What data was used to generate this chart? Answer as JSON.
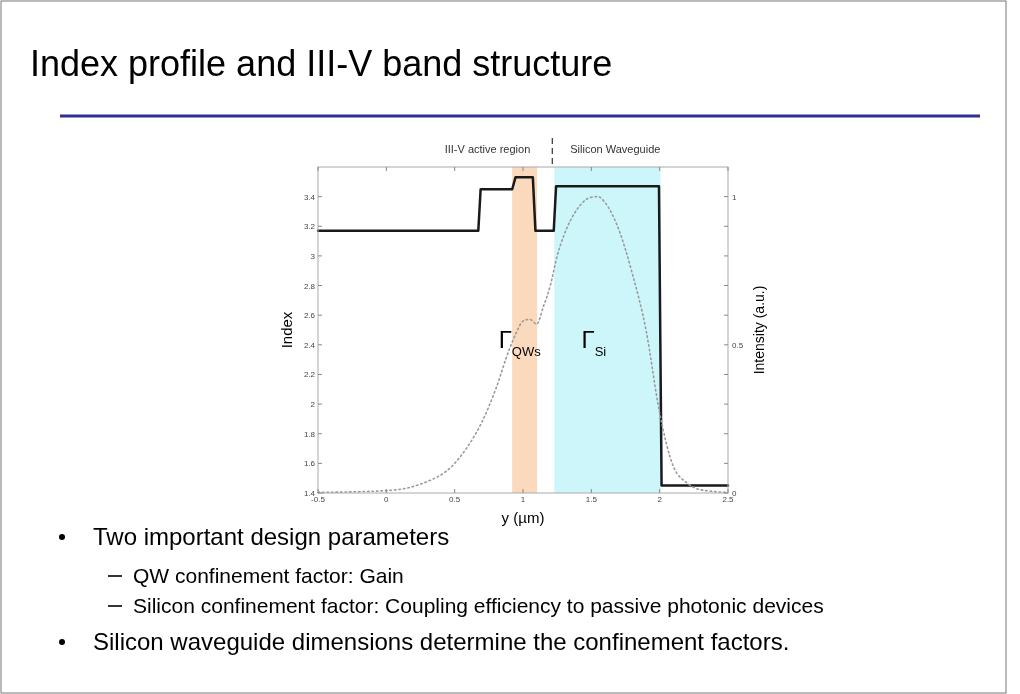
{
  "chart_data": {
    "type": "line",
    "title": "Index profile and III-V band structure",
    "xlabel": "y (µm)",
    "ylabel": "Index",
    "y2label": "Intensity (a.u.)",
    "xlim": [
      -0.5,
      2.5
    ],
    "xticks": [
      -0.5,
      0,
      0.5,
      1,
      1.5,
      2,
      2.5
    ],
    "ylim": [
      1.4,
      3.6
    ],
    "yticks": [
      1.4,
      1.6,
      1.8,
      2,
      2.2,
      2.4,
      2.6,
      2.8,
      3,
      3.2,
      3.4
    ],
    "y2lim": [
      0,
      1.1
    ],
    "y2ticks": [
      0,
      {
        "value": 0.1,
        "label": null
      },
      {
        "value": 0.2,
        "label": null
      },
      {
        "value": 0.3,
        "label": null
      },
      {
        "value": 0.4,
        "label": null
      },
      0.5,
      {
        "value": 0.6,
        "label": null
      },
      {
        "value": 0.7,
        "label": null
      },
      {
        "value": 0.8,
        "label": null
      },
      {
        "value": 0.9,
        "label": null
      },
      1
    ],
    "grid": false,
    "series": [
      {
        "color": "#1a1a1a",
        "line_style": "solid",
        "x": [
          -0.5,
          0.673,
          0.69,
          0.921,
          0.945,
          1.072,
          1.091,
          1.225,
          1.242,
          1.995,
          2.014,
          2.5
        ],
        "values": [
          3.17,
          3.17,
          3.45,
          3.45,
          3.53,
          3.53,
          3.17,
          3.17,
          3.47,
          3.47,
          1.45,
          1.45
        ]
      },
      {
        "color": "#9a9a9a",
        "line_style": "dotted",
        "axis": "y2",
        "x": [
          -0.5,
          0,
          0.25,
          0.5,
          0.6,
          0.7,
          0.8,
          0.9,
          0.95,
          1,
          1.05,
          1.1,
          1.15,
          1.2,
          1.25,
          1.3,
          1.4,
          1.5,
          1.55,
          1.6,
          1.7,
          1.8,
          1.9,
          2,
          2.1,
          2.2,
          2.3,
          2.5
        ],
        "values": [
          0.002,
          0.008,
          0.03,
          0.1,
          0.16,
          0.24,
          0.35,
          0.485,
          0.54,
          0.58,
          0.586,
          0.57,
          0.63,
          0.7,
          0.8,
          0.87,
          0.96,
          0.998,
          1,
          0.98,
          0.89,
          0.74,
          0.55,
          0.27,
          0.09,
          0.034,
          0.011,
          0.002
        ]
      }
    ],
    "bands": [
      {
        "axis": "x",
        "from": 0.921,
        "to": 1.103,
        "label": "Γ$_{QWs}$",
        "color": "#fbd9bc"
      },
      {
        "axis": "x",
        "from": 1.229,
        "to": 2.007,
        "label": "Γ$_{Si}$",
        "color": "#cdf6fb"
      }
    ],
    "annotations": [
      "III-V active region",
      "Silicon Waveguide",
      "Two important design parameters",
      "QW confinement factor: Gain",
      "Silicon confinement factor: Coupling efficiency to passive photonic devices",
      "Silicon waveguide dimensions determine the confinement factors."
    ]
  }
}
